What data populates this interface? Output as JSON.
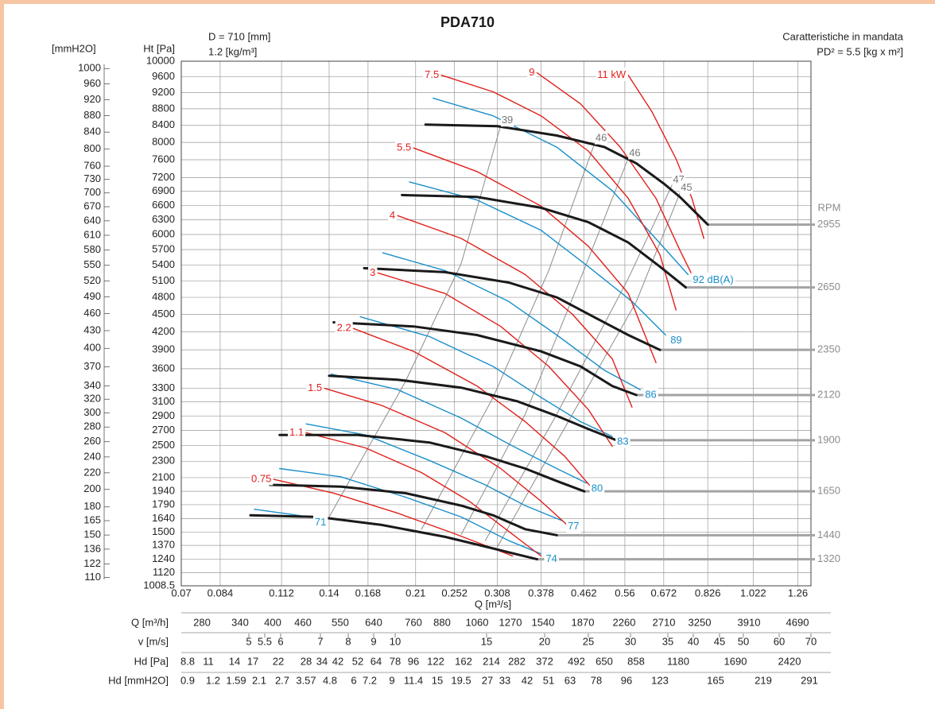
{
  "chart_data": {
    "type": "fan-curves",
    "title": "PDA710",
    "annotations": [
      "D = 710 [mm]",
      "1.2 [kg/m³]",
      "Caratteristiche in mandata",
      "PD² = 5.5 [kg x m²]"
    ],
    "y_label": "Ht [Pa]",
    "y2_label": "[mmH2O]",
    "x_label": "Q [m³/s]",
    "rpm_label": "RPM",
    "xscale": "log",
    "yscale": "sqrt",
    "grid": true,
    "xlim": [
      0.07,
      1.34
    ],
    "xticks": [
      0.07,
      0.084,
      0.112,
      0.14,
      0.168,
      0.21,
      0.252,
      0.308,
      0.378,
      0.462,
      0.56,
      0.672,
      0.826,
      1.022,
      1.26
    ],
    "ylim": [
      1008.5,
      10000
    ],
    "yticks": [
      1008.5,
      1120,
      1240,
      1370,
      1500,
      1640,
      1790,
      1940,
      2100,
      2300,
      2500,
      2700,
      2900,
      3100,
      3300,
      3600,
      3900,
      4200,
      4500,
      4800,
      5100,
      5400,
      5700,
      6000,
      6300,
      6600,
      6900,
      7200,
      7600,
      8000,
      8400,
      8800,
      9200,
      9600,
      10000
    ],
    "y2lim": [
      102.8,
      1019.4
    ],
    "y2ticks": [
      110,
      122,
      136,
      150,
      165,
      180,
      200,
      220,
      240,
      260,
      280,
      300,
      320,
      340,
      370,
      400,
      430,
      460,
      490,
      520,
      550,
      580,
      610,
      640,
      670,
      700,
      730,
      760,
      800,
      840,
      880,
      920,
      960,
      1000
    ],
    "series": [
      {
        "name": "2955",
        "color": "#1a1a1a",
        "x": [
          0.22,
          0.308,
          0.407,
          0.509,
          0.591,
          0.672,
          0.725,
          0.826
        ],
        "values": [
          8420,
          8380,
          8160,
          7890,
          7520,
          7070,
          6780,
          6200
        ]
      },
      {
        "name": "2650",
        "color": "#1a1a1a",
        "x": [
          0.197,
          0.28,
          0.378,
          0.472,
          0.569,
          0.66,
          0.745
        ],
        "values": [
          6820,
          6780,
          6550,
          6250,
          5840,
          5370,
          4980
        ]
      },
      {
        "name": "2350",
        "color": "#1a1a1a",
        "x": [
          0.165,
          0.241,
          0.325,
          0.407,
          0.49,
          0.569,
          0.66
        ],
        "values": [
          5340,
          5265,
          5070,
          4800,
          4430,
          4145,
          3900
        ]
      },
      {
        "name": "2120",
        "color": "#1a1a1a",
        "x": [
          0.143,
          0.208,
          0.28,
          0.378,
          0.455,
          0.528,
          0.591
        ],
        "values": [
          4360,
          4290,
          4145,
          3875,
          3635,
          3335,
          3200
        ]
      },
      {
        "name": "1900",
        "color": "#1a1a1a",
        "x": [
          0.14,
          0.193,
          0.26,
          0.338,
          0.407,
          0.472,
          0.538
        ],
        "values": [
          3490,
          3430,
          3310,
          3110,
          2900,
          2720,
          2570
        ]
      },
      {
        "name": "1650",
        "color": "#1a1a1a",
        "x": [
          0.111,
          0.16,
          0.224,
          0.291,
          0.351,
          0.407,
          0.463
        ],
        "values": [
          2640,
          2640,
          2540,
          2365,
          2210,
          2060,
          1940
        ]
      },
      {
        "name": "1440",
        "color": "#1a1a1a",
        "x": [
          0.106,
          0.148,
          0.2,
          0.26,
          0.302,
          0.351,
          0.407
        ],
        "values": [
          2015,
          1995,
          1920,
          1780,
          1675,
          1530,
          1470
        ]
      },
      {
        "name": "1320",
        "color": "#1a1a1a",
        "x": [
          0.0968,
          0.133,
          0.179,
          0.241,
          0.302,
          0.371
        ],
        "values": [
          1675,
          1657,
          1574,
          1454,
          1341,
          1240
        ]
      }
    ],
    "power_series": [
      {
        "name": "7.5",
        "color": "#e0201b",
        "x": [
          0.237,
          0.302,
          0.378,
          0.472,
          0.569,
          0.66,
          0.712
        ],
        "values": [
          9640,
          9220,
          8630,
          7800,
          6750,
          5600,
          4575
        ]
      },
      {
        "name": "9",
        "color": "#e0201b",
        "x": [
          0.371,
          0.455,
          0.548,
          0.648,
          0.725,
          0.767
        ],
        "values": [
          9700,
          8920,
          7890,
          6750,
          5685,
          5220
        ]
      },
      {
        "name": "11 kW",
        "color": "#e0201b",
        "x": [
          0.569,
          0.636,
          0.712,
          0.767,
          0.811
        ],
        "values": [
          9640,
          8725,
          7620,
          6750,
          5920
        ]
      },
      {
        "name": "5.5",
        "color": "#e0201b",
        "x": [
          0.208,
          0.28,
          0.378,
          0.472,
          0.569,
          0.648
        ],
        "values": [
          7870,
          7335,
          6585,
          5765,
          4870,
          3695
        ]
      },
      {
        "name": "4",
        "color": "#e0201b",
        "x": [
          0.193,
          0.26,
          0.351,
          0.438,
          0.528,
          0.579
        ],
        "values": [
          6385,
          5920,
          5220,
          4500,
          3755,
          3025
        ]
      },
      {
        "name": "3",
        "color": "#e0201b",
        "x": [
          0.176,
          0.241,
          0.313,
          0.392,
          0.472,
          0.528
        ],
        "values": [
          5250,
          4870,
          4290,
          3635,
          2990,
          2490
        ]
      },
      {
        "name": "2.2",
        "color": "#e0201b",
        "x": [
          0.157,
          0.208,
          0.28,
          0.351,
          0.422,
          0.477
        ],
        "values": [
          4255,
          3875,
          3335,
          2820,
          2365,
          1995
        ]
      },
      {
        "name": "1.5",
        "color": "#e0201b",
        "x": [
          0.137,
          0.179,
          0.241,
          0.313,
          0.378,
          0.427
        ],
        "values": [
          3300,
          3050,
          2670,
          2210,
          1828,
          1574
        ]
      },
      {
        "name": "1.1",
        "color": "#e0201b",
        "x": [
          0.1257,
          0.166,
          0.216,
          0.27,
          0.325,
          0.378
        ],
        "values": [
          2670,
          2470,
          2160,
          1828,
          1508,
          1270
        ]
      },
      {
        "name": "0.75",
        "color": "#e0201b",
        "x": [
          0.108,
          0.143,
          0.193,
          0.25,
          0.302,
          0.331
        ],
        "values": [
          2080,
          1920,
          1698,
          1492,
          1341,
          1270
        ]
      }
    ],
    "noise_series": [
      {
        "name": "92 dB(A)",
        "color": "#1a8fc9",
        "x": [
          0.228,
          0.302,
          0.407,
          0.528,
          0.636,
          0.753
        ],
        "values": [
          9060,
          8630,
          7890,
          6915,
          6000,
          5220
        ]
      },
      {
        "name": "89",
        "color": "#1a8fc9",
        "x": [
          0.204,
          0.28,
          0.378,
          0.472,
          0.579,
          0.678
        ],
        "values": [
          7105,
          6715,
          6085,
          5370,
          4725,
          4145
        ]
      },
      {
        "name": "86",
        "color": "#1a8fc9",
        "x": [
          0.18,
          0.241,
          0.325,
          0.407,
          0.509,
          0.602
        ],
        "values": [
          5635,
          5295,
          4725,
          4145,
          3575,
          3280
        ]
      },
      {
        "name": "83",
        "color": "#1a8fc9",
        "x": [
          0.162,
          0.224,
          0.302,
          0.378,
          0.455,
          0.528
        ],
        "values": [
          4455,
          4120,
          3635,
          3165,
          2820,
          2620
        ]
      },
      {
        "name": "80",
        "color": "#1a8fc9",
        "x": [
          0.1414,
          0.193,
          0.26,
          0.325,
          0.407,
          0.468
        ],
        "values": [
          3515,
          3280,
          2870,
          2520,
          2210,
          2035
        ]
      },
      {
        "name": "77",
        "color": "#1a8fc9",
        "x": [
          0.1257,
          0.166,
          0.224,
          0.291,
          0.351,
          0.419
        ],
        "values": [
          2790,
          2640,
          2310,
          2015,
          1780,
          1615
        ]
      },
      {
        "name": "74",
        "color": "#1a8fc9",
        "x": [
          0.111,
          0.148,
          0.2,
          0.26,
          0.325,
          0.378
        ],
        "values": [
          2210,
          2110,
          1875,
          1657,
          1416,
          1290
        ]
      },
      {
        "name": "71",
        "color": "#1a8fc9",
        "x": [
          0.0986,
          0.1124,
          0.128
        ],
        "values": [
          1740,
          1698,
          1657
        ]
      }
    ],
    "system_series": [
      {
        "name": "39",
        "color": "#8c8c8c",
        "x": [
          0.14,
          0.2,
          0.26,
          0.313
        ],
        "values": [
          1657,
          3396,
          5430,
          8400
        ]
      },
      {
        "name": "46",
        "color": "#8c8c8c",
        "x": [
          0.216,
          0.302,
          0.392,
          0.486
        ],
        "values": [
          1530,
          3167,
          5295,
          7980
        ]
      },
      {
        "name": "46",
        "color": "#8c8c8c",
        "x": [
          0.26,
          0.351,
          0.455,
          0.569
        ],
        "values": [
          1477,
          2925,
          5145,
          7636
        ]
      },
      {
        "name": "47",
        "color": "#8c8c8c",
        "x": [
          0.291,
          0.407,
          0.569,
          0.699
        ],
        "values": [
          1416,
          2925,
          5145,
          7042
        ]
      },
      {
        "name": "45",
        "color": "#8c8c8c",
        "x": [
          0.308,
          0.438,
          0.591,
          0.725
        ],
        "values": [
          1356,
          2925,
          4725,
          6867
        ]
      }
    ]
  },
  "bottom_table": {
    "rows": [
      {
        "label": "Q [m³/h]",
        "values": [
          280,
          340,
          400,
          460,
          550,
          640,
          760,
          880,
          1060,
          1270,
          1540,
          1870,
          2260,
          2710,
          3250,
          3910,
          4690
        ]
      },
      {
        "label": "v [m/s]",
        "values": [
          5,
          5.5,
          6,
          7,
          8,
          9,
          10,
          15,
          20,
          25,
          30,
          35,
          40,
          45,
          50,
          60,
          70
        ]
      },
      {
        "label": "Hd [Pa]",
        "values": [
          8.8,
          11,
          14,
          17,
          22,
          28,
          34,
          42,
          52,
          64,
          78,
          96,
          122,
          162,
          214,
          282,
          372,
          492,
          650,
          858,
          1180,
          1690,
          2420
        ]
      },
      {
        "label": "Hd [mmH2O]",
        "values": [
          0.9,
          1.2,
          1.59,
          2.1,
          2.7,
          3.57,
          4.8,
          6,
          7.2,
          9,
          11.4,
          15,
          19.5,
          27,
          33,
          42,
          51,
          63,
          78,
          96,
          123,
          165,
          219,
          291
        ]
      }
    ]
  }
}
